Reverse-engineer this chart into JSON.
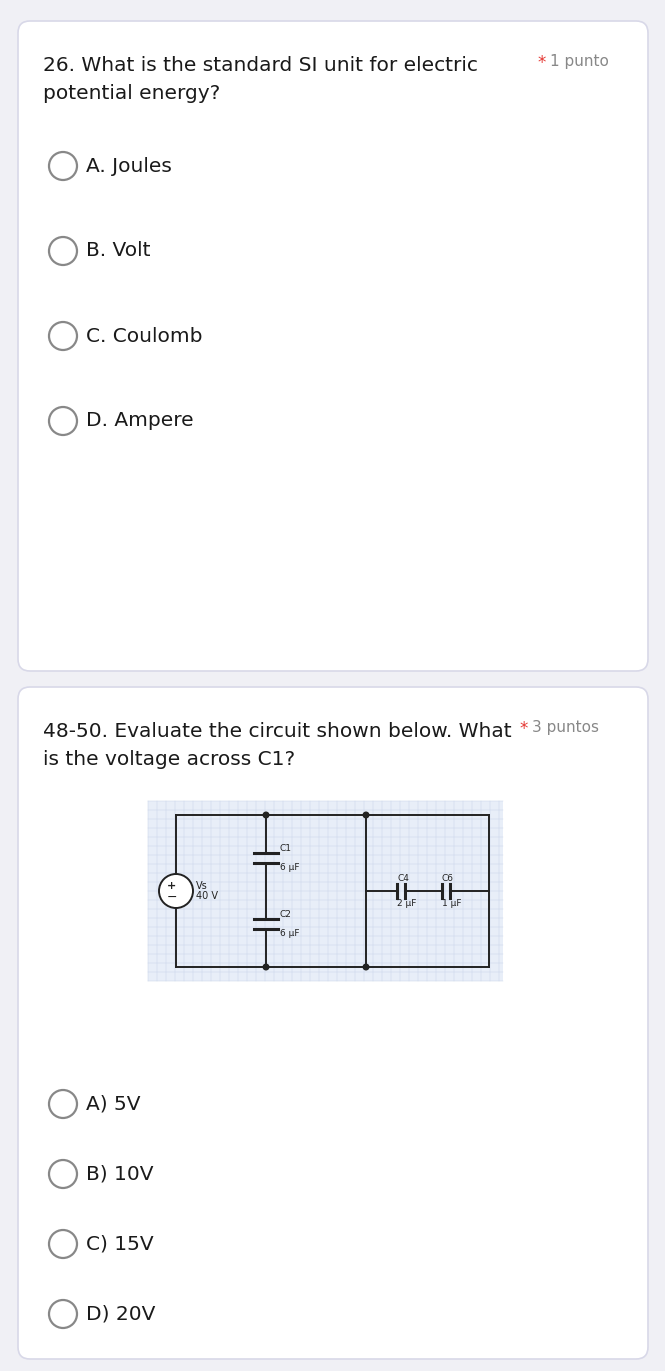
{
  "bg_color": "#f0f0f5",
  "card_bg": "#ffffff",
  "card_border": "#d8d8e8",
  "q1_options": [
    "A. Joules",
    "B. Volt",
    "C. Coulomb",
    "D. Ampere"
  ],
  "q2_options": [
    "A) 5V",
    "B) 10V",
    "C) 15V",
    "D) 20V"
  ],
  "star_color": "#e53935",
  "points_color": "#888888",
  "text_color": "#1a1a1a",
  "circle_edge": "#888888",
  "circuit_line": "#222222",
  "grid_color": "#c8d4e8",
  "circuit_bg": "#e8eef8",
  "q1_line1": "26. What is the standard SI unit for electric",
  "q1_line2": "potential energy?",
  "q1_star_text": "*",
  "q1_points_text": "1 punto",
  "q2_line1": "48-50. Evaluate the circuit shown below. What",
  "q2_star_text": "*",
  "q2_points_text": "3 puntos",
  "q2_line2": "is the voltage across C1?"
}
